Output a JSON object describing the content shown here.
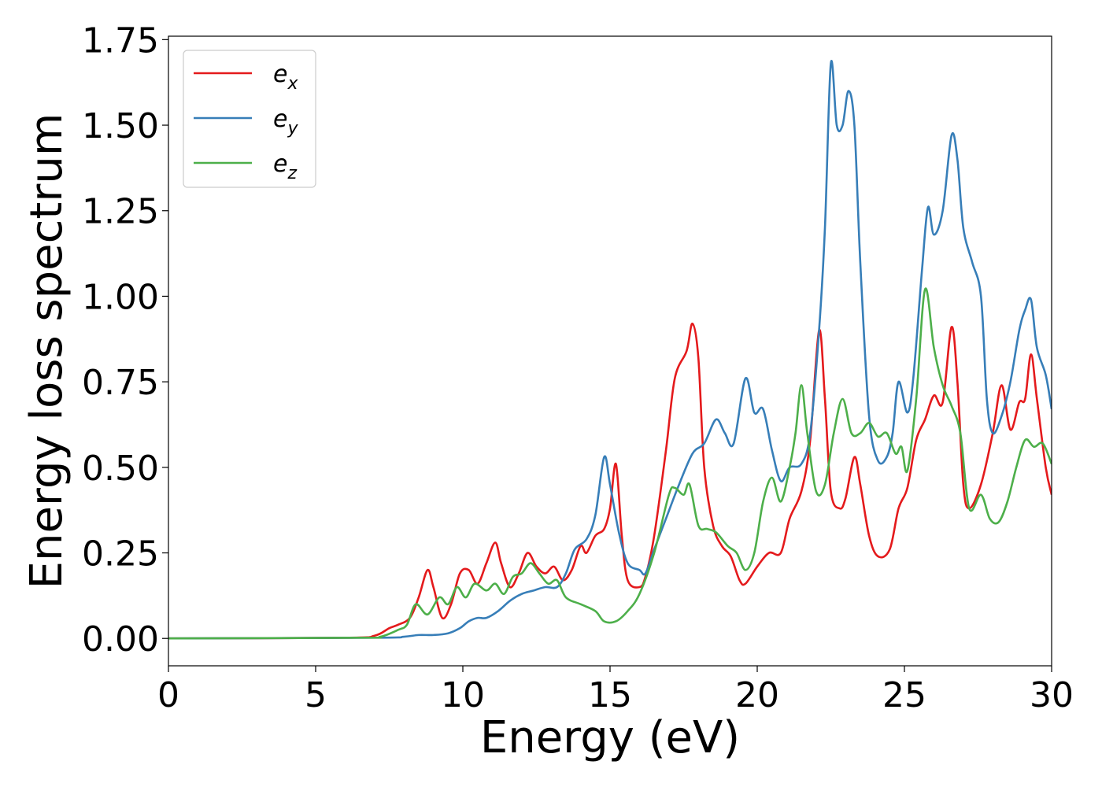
{
  "chart_data": {
    "type": "line",
    "title": "",
    "xlabel": "Energy (eV)",
    "ylabel": "Energy loss spectrum",
    "xlim": [
      0,
      30
    ],
    "ylim": [
      -0.08,
      1.76
    ],
    "xticks": [
      0,
      5,
      10,
      15,
      20,
      25,
      30
    ],
    "xtick_labels": [
      "0",
      "5",
      "10",
      "15",
      "20",
      "25",
      "30"
    ],
    "yticks": [
      0,
      0.25,
      0.5,
      0.75,
      1.0,
      1.25,
      1.5,
      1.75
    ],
    "ytick_labels": [
      "0.00",
      "0.25",
      "0.50",
      "0.75",
      "1.00",
      "1.25",
      "1.50",
      "1.75"
    ],
    "grid": false,
    "legend_position": "top-left",
    "series": [
      {
        "name": "e",
        "subscript": "x",
        "color": "#e41a1c",
        "points": [
          [
            0,
            0
          ],
          [
            6,
            0.002
          ],
          [
            7,
            0.008
          ],
          [
            7.5,
            0.03
          ],
          [
            7.8,
            0.04
          ],
          [
            8.2,
            0.06
          ],
          [
            8.5,
            0.12
          ],
          [
            8.8,
            0.2
          ],
          [
            9,
            0.15
          ],
          [
            9.3,
            0.06
          ],
          [
            9.6,
            0.1
          ],
          [
            9.9,
            0.19
          ],
          [
            10.2,
            0.2
          ],
          [
            10.5,
            0.16
          ],
          [
            10.8,
            0.22
          ],
          [
            11.1,
            0.28
          ],
          [
            11.3,
            0.22
          ],
          [
            11.6,
            0.15
          ],
          [
            11.9,
            0.19
          ],
          [
            12.2,
            0.25
          ],
          [
            12.5,
            0.21
          ],
          [
            12.8,
            0.19
          ],
          [
            13.1,
            0.21
          ],
          [
            13.4,
            0.17
          ],
          [
            13.7,
            0.2
          ],
          [
            14,
            0.27
          ],
          [
            14.2,
            0.25
          ],
          [
            14.5,
            0.3
          ],
          [
            14.8,
            0.32
          ],
          [
            15,
            0.38
          ],
          [
            15.2,
            0.51
          ],
          [
            15.4,
            0.3
          ],
          [
            15.6,
            0.17
          ],
          [
            16,
            0.15
          ],
          [
            16.2,
            0.18
          ],
          [
            16.5,
            0.3
          ],
          [
            16.9,
            0.55
          ],
          [
            17.2,
            0.76
          ],
          [
            17.6,
            0.84
          ],
          [
            17.8,
            0.92
          ],
          [
            18,
            0.82
          ],
          [
            18.2,
            0.5
          ],
          [
            18.5,
            0.33
          ],
          [
            18.8,
            0.27
          ],
          [
            19.1,
            0.24
          ],
          [
            19.4,
            0.17
          ],
          [
            19.6,
            0.16
          ],
          [
            20,
            0.21
          ],
          [
            20.4,
            0.25
          ],
          [
            20.8,
            0.25
          ],
          [
            21.1,
            0.35
          ],
          [
            21.5,
            0.43
          ],
          [
            21.8,
            0.58
          ],
          [
            22.1,
            0.9
          ],
          [
            22.3,
            0.7
          ],
          [
            22.5,
            0.43
          ],
          [
            22.8,
            0.38
          ],
          [
            23,
            0.41
          ],
          [
            23.3,
            0.53
          ],
          [
            23.5,
            0.45
          ],
          [
            23.8,
            0.3
          ],
          [
            24.1,
            0.24
          ],
          [
            24.5,
            0.26
          ],
          [
            24.8,
            0.38
          ],
          [
            25.1,
            0.44
          ],
          [
            25.4,
            0.58
          ],
          [
            25.7,
            0.64
          ],
          [
            26,
            0.71
          ],
          [
            26.3,
            0.69
          ],
          [
            26.6,
            0.91
          ],
          [
            26.8,
            0.75
          ],
          [
            27,
            0.45
          ],
          [
            27.2,
            0.38
          ],
          [
            27.6,
            0.45
          ],
          [
            28,
            0.6
          ],
          [
            28.3,
            0.74
          ],
          [
            28.6,
            0.61
          ],
          [
            28.9,
            0.69
          ],
          [
            29.1,
            0.7
          ],
          [
            29.3,
            0.83
          ],
          [
            29.5,
            0.7
          ],
          [
            29.8,
            0.5
          ],
          [
            30,
            0.42
          ]
        ]
      },
      {
        "name": "e",
        "subscript": "y",
        "color": "#377eb8",
        "points": [
          [
            0,
            0
          ],
          [
            7,
            0.002
          ],
          [
            8,
            0.005
          ],
          [
            8.5,
            0.01
          ],
          [
            9,
            0.01
          ],
          [
            9.5,
            0.015
          ],
          [
            9.9,
            0.03
          ],
          [
            10.2,
            0.05
          ],
          [
            10.5,
            0.06
          ],
          [
            10.8,
            0.06
          ],
          [
            11.2,
            0.08
          ],
          [
            11.6,
            0.11
          ],
          [
            12,
            0.13
          ],
          [
            12.4,
            0.14
          ],
          [
            12.8,
            0.15
          ],
          [
            13.2,
            0.15
          ],
          [
            13.5,
            0.19
          ],
          [
            13.8,
            0.26
          ],
          [
            14.2,
            0.29
          ],
          [
            14.5,
            0.36
          ],
          [
            14.8,
            0.53
          ],
          [
            15,
            0.45
          ],
          [
            15.3,
            0.31
          ],
          [
            15.6,
            0.22
          ],
          [
            16,
            0.2
          ],
          [
            16.2,
            0.19
          ],
          [
            16.5,
            0.26
          ],
          [
            16.9,
            0.35
          ],
          [
            17.3,
            0.44
          ],
          [
            17.8,
            0.54
          ],
          [
            18.2,
            0.57
          ],
          [
            18.6,
            0.64
          ],
          [
            18.9,
            0.6
          ],
          [
            19.2,
            0.57
          ],
          [
            19.6,
            0.76
          ],
          [
            19.9,
            0.66
          ],
          [
            20.2,
            0.67
          ],
          [
            20.5,
            0.55
          ],
          [
            20.8,
            0.46
          ],
          [
            21.1,
            0.5
          ],
          [
            21.5,
            0.51
          ],
          [
            21.8,
            0.6
          ],
          [
            22.1,
            0.9
          ],
          [
            22.3,
            1.2
          ],
          [
            22.5,
            1.68
          ],
          [
            22.7,
            1.5
          ],
          [
            22.9,
            1.5
          ],
          [
            23.1,
            1.6
          ],
          [
            23.3,
            1.5
          ],
          [
            23.5,
            1.1
          ],
          [
            23.8,
            0.65
          ],
          [
            24.1,
            0.52
          ],
          [
            24.4,
            0.53
          ],
          [
            24.6,
            0.6
          ],
          [
            24.8,
            0.75
          ],
          [
            25.1,
            0.66
          ],
          [
            25.3,
            0.76
          ],
          [
            25.6,
            1.08
          ],
          [
            25.8,
            1.26
          ],
          [
            26,
            1.18
          ],
          [
            26.3,
            1.25
          ],
          [
            26.6,
            1.47
          ],
          [
            26.8,
            1.4
          ],
          [
            27,
            1.2
          ],
          [
            27.3,
            1.1
          ],
          [
            27.6,
            1.0
          ],
          [
            27.8,
            0.7
          ],
          [
            28,
            0.6
          ],
          [
            28.3,
            0.65
          ],
          [
            28.6,
            0.75
          ],
          [
            28.9,
            0.9
          ],
          [
            29.1,
            0.96
          ],
          [
            29.3,
            0.99
          ],
          [
            29.5,
            0.85
          ],
          [
            29.8,
            0.77
          ],
          [
            30,
            0.67
          ]
        ]
      },
      {
        "name": "e",
        "subscript": "z",
        "color": "#4daf4a",
        "points": [
          [
            0,
            0
          ],
          [
            6.5,
            0.002
          ],
          [
            7.2,
            0.005
          ],
          [
            7.8,
            0.025
          ],
          [
            8.1,
            0.04
          ],
          [
            8.4,
            0.1
          ],
          [
            8.8,
            0.07
          ],
          [
            9.2,
            0.12
          ],
          [
            9.5,
            0.1
          ],
          [
            9.8,
            0.15
          ],
          [
            10.1,
            0.12
          ],
          [
            10.4,
            0.16
          ],
          [
            10.8,
            0.14
          ],
          [
            11.1,
            0.16
          ],
          [
            11.4,
            0.13
          ],
          [
            11.7,
            0.18
          ],
          [
            12,
            0.19
          ],
          [
            12.3,
            0.22
          ],
          [
            12.6,
            0.19
          ],
          [
            12.9,
            0.16
          ],
          [
            13.2,
            0.17
          ],
          [
            13.5,
            0.12
          ],
          [
            14,
            0.1
          ],
          [
            14.5,
            0.08
          ],
          [
            14.8,
            0.05
          ],
          [
            15.2,
            0.05
          ],
          [
            15.6,
            0.08
          ],
          [
            16,
            0.13
          ],
          [
            16.5,
            0.25
          ],
          [
            17,
            0.42
          ],
          [
            17.2,
            0.44
          ],
          [
            17.5,
            0.42
          ],
          [
            17.7,
            0.45
          ],
          [
            18,
            0.33
          ],
          [
            18.3,
            0.32
          ],
          [
            18.6,
            0.31
          ],
          [
            19,
            0.27
          ],
          [
            19.3,
            0.25
          ],
          [
            19.6,
            0.2
          ],
          [
            19.9,
            0.25
          ],
          [
            20.2,
            0.4
          ],
          [
            20.5,
            0.47
          ],
          [
            20.8,
            0.4
          ],
          [
            21.1,
            0.5
          ],
          [
            21.3,
            0.6
          ],
          [
            21.5,
            0.74
          ],
          [
            21.7,
            0.6
          ],
          [
            22,
            0.43
          ],
          [
            22.3,
            0.45
          ],
          [
            22.6,
            0.6
          ],
          [
            22.9,
            0.7
          ],
          [
            23.2,
            0.6
          ],
          [
            23.5,
            0.6
          ],
          [
            23.8,
            0.63
          ],
          [
            24.1,
            0.59
          ],
          [
            24.4,
            0.6
          ],
          [
            24.7,
            0.54
          ],
          [
            24.9,
            0.56
          ],
          [
            25.1,
            0.49
          ],
          [
            25.4,
            0.7
          ],
          [
            25.7,
            1.02
          ],
          [
            26,
            0.85
          ],
          [
            26.3,
            0.74
          ],
          [
            26.6,
            0.68
          ],
          [
            26.9,
            0.6
          ],
          [
            27.2,
            0.38
          ],
          [
            27.6,
            0.42
          ],
          [
            27.9,
            0.35
          ],
          [
            28.2,
            0.34
          ],
          [
            28.5,
            0.4
          ],
          [
            28.8,
            0.5
          ],
          [
            29.1,
            0.58
          ],
          [
            29.4,
            0.56
          ],
          [
            29.7,
            0.57
          ],
          [
            30,
            0.51
          ]
        ]
      }
    ]
  }
}
